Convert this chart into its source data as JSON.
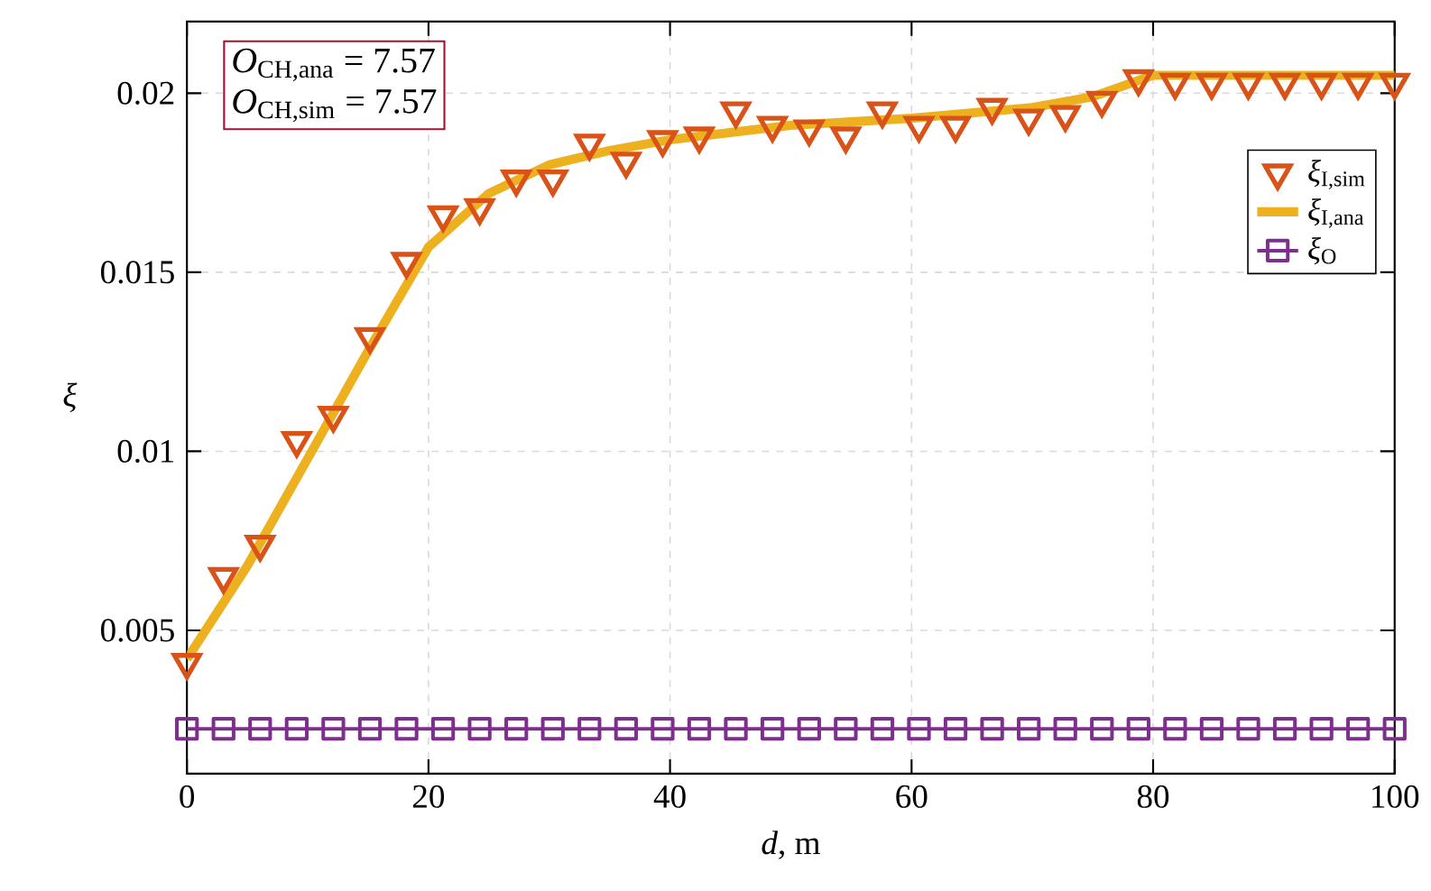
{
  "chart_data": {
    "type": "line",
    "xlabel": "*d*, m",
    "ylabel": "*ξ*",
    "xlim": [
      0,
      100
    ],
    "ylim": [
      0.001,
      0.022
    ],
    "xticks": [
      0,
      20,
      40,
      60,
      80,
      100
    ],
    "yticks": [
      0.005,
      0.01,
      0.015,
      0.02
    ],
    "grid": true,
    "legend": "top right",
    "annotations": [
      "*O*$_{CH,ana}$ = 7.57",
      "*O*$_{CH,sim}$ = 7.57"
    ],
    "series": [
      {
        "name": "*ξ*$_{I,sim}$",
        "type": "scatter",
        "marker": "triangle",
        "color": "#d95319",
        "x": [
          0,
          3.03,
          6.06,
          9.09,
          12.12,
          15.15,
          18.18,
          21.21,
          24.24,
          27.27,
          30.3,
          33.33,
          36.36,
          39.39,
          42.42,
          45.45,
          48.48,
          51.52,
          54.55,
          57.58,
          60.61,
          63.64,
          66.67,
          69.7,
          72.73,
          75.76,
          78.79,
          81.82,
          84.85,
          87.88,
          90.91,
          93.94,
          96.97,
          100
        ],
        "values": [
          0.0041,
          0.0065,
          0.0074,
          0.0103,
          0.011,
          0.0132,
          0.0153,
          0.0166,
          0.0168,
          0.0176,
          0.0176,
          0.0186,
          0.0181,
          0.0187,
          0.0188,
          0.0195,
          0.0191,
          0.019,
          0.0188,
          0.0195,
          0.0191,
          0.0191,
          0.0196,
          0.0193,
          0.0194,
          0.0198,
          0.0204,
          0.0203,
          0.0203,
          0.0203,
          0.0203,
          0.0203,
          0.0203,
          0.0203
        ]
      },
      {
        "name": "*ξ*$_{I,ana}$",
        "marker": "none",
        "color": "#edb120",
        "x": [
          0,
          5,
          10,
          15,
          20,
          25,
          30,
          35,
          40,
          50,
          60,
          70,
          75,
          80,
          90,
          100
        ],
        "values": [
          0.0042,
          0.0068,
          0.0098,
          0.0128,
          0.0157,
          0.0172,
          0.018,
          0.0184,
          0.0187,
          0.0191,
          0.0193,
          0.0196,
          0.0199,
          0.0205,
          0.0205,
          0.0205
        ]
      },
      {
        "name": "*ξ*$_{O}$",
        "type": "line",
        "marker": "square",
        "color": "#7e2f8e",
        "x": [
          0,
          3.03,
          6.06,
          9.09,
          12.12,
          15.15,
          18.18,
          21.21,
          24.24,
          27.27,
          30.3,
          33.33,
          36.36,
          39.39,
          42.42,
          45.45,
          48.48,
          51.52,
          54.55,
          57.58,
          60.61,
          63.64,
          66.67,
          69.7,
          72.73,
          75.76,
          78.79,
          81.82,
          84.85,
          87.88,
          90.91,
          93.94,
          96.97,
          100
        ],
        "values": [
          0.00225,
          0.00225,
          0.00225,
          0.00225,
          0.00225,
          0.00225,
          0.00225,
          0.00225,
          0.00225,
          0.00225,
          0.00225,
          0.00225,
          0.00225,
          0.00225,
          0.00225,
          0.00225,
          0.00225,
          0.00225,
          0.00225,
          0.00225,
          0.00225,
          0.00225,
          0.00225,
          0.00225,
          0.00225,
          0.00225,
          0.00225,
          0.00225,
          0.00225,
          0.00225,
          0.00225,
          0.00225,
          0.00225,
          0.00225
        ]
      }
    ]
  }
}
